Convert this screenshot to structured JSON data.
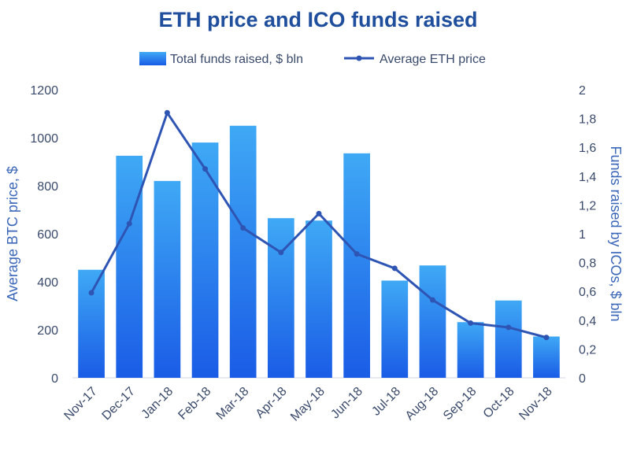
{
  "chart_data": {
    "type": "bar",
    "title": "ETH price and ICO funds raised",
    "categories": [
      "Nov-17",
      "Dec-17",
      "Jan-18",
      "Feb-18",
      "Mar-18",
      "Apr-18",
      "May-18",
      "Jun-18",
      "Jul-18",
      "Aug-18",
      "Sep-18",
      "Oct-18",
      "Nov-18"
    ],
    "series": [
      {
        "name": "Total funds raised, $ bln",
        "type": "bar",
        "axis": "left",
        "values": [
          450,
          925,
          820,
          980,
          1050,
          665,
          655,
          935,
          405,
          468,
          232,
          322,
          172
        ]
      },
      {
        "name": "Average ETH price",
        "type": "line",
        "axis": "right",
        "values": [
          0.59,
          1.07,
          1.84,
          1.45,
          1.04,
          0.87,
          1.14,
          0.86,
          0.76,
          0.54,
          0.38,
          0.35,
          0.28
        ]
      }
    ],
    "ylabel_left": "Average BTC price, $",
    "ylabel_right": "Funds raised by ICOs, $ bln",
    "ylim_left": [
      0,
      1200
    ],
    "yticks_left": [
      "0",
      "200",
      "400",
      "600",
      "800",
      "1000",
      "1200"
    ],
    "ylim_right": [
      0,
      2
    ],
    "yticks_right": [
      "0",
      "0,2",
      "0,4",
      "0,6",
      "0,8",
      "1",
      "1,2",
      "1,4",
      "1,6",
      "1,8",
      "2"
    ],
    "legend_position": "top-center",
    "grid": false,
    "colors": {
      "bar_top": "#3fa9f5",
      "bar_bottom": "#1a5ce6",
      "line": "#2f55b4",
      "title": "#1f4e9c",
      "axis_title": "#3a66b8"
    }
  }
}
